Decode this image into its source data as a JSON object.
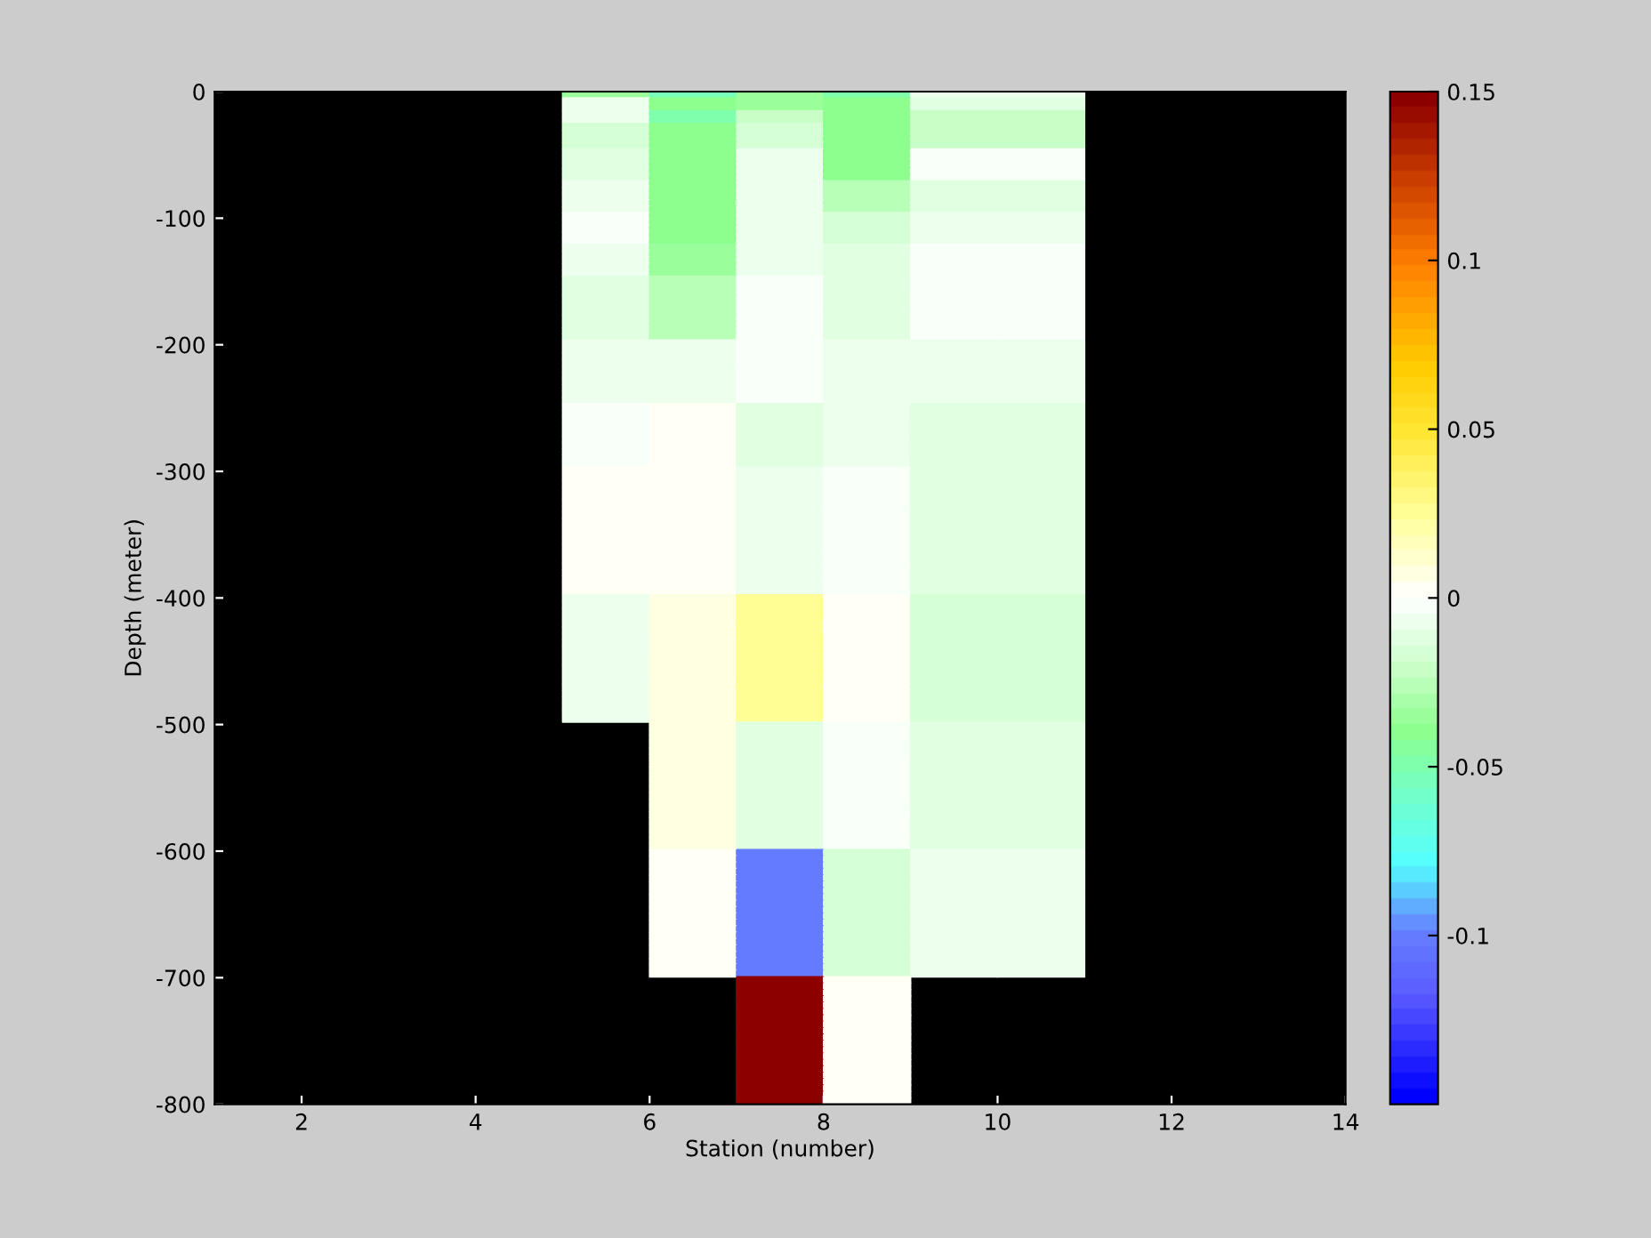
{
  "chart_data": {
    "type": "heatmap",
    "xlabel": "Station (number)",
    "ylabel": "Depth (meter)",
    "cells": [
      [
        null,
        null,
        null,
        null,
        -0.035,
        -0.055,
        -0.035,
        -0.05,
        -0.005,
        -0.005,
        null,
        null,
        null
      ],
      [
        null,
        null,
        null,
        null,
        -0.007,
        -0.04,
        -0.035,
        -0.04,
        -0.01,
        -0.01,
        null,
        null,
        null
      ],
      [
        null,
        null,
        null,
        null,
        -0.007,
        -0.04,
        -0.035,
        -0.04,
        -0.01,
        -0.01,
        null,
        null,
        null
      ],
      [
        null,
        null,
        null,
        null,
        -0.007,
        -0.05,
        -0.022,
        -0.04,
        -0.022,
        -0.022,
        null,
        null,
        null
      ],
      [
        null,
        null,
        null,
        null,
        -0.007,
        -0.05,
        -0.022,
        -0.04,
        -0.022,
        -0.022,
        null,
        null,
        null
      ],
      [
        null,
        null,
        null,
        null,
        -0.017,
        -0.04,
        -0.017,
        -0.04,
        -0.022,
        -0.022,
        null,
        null,
        null
      ],
      [
        null,
        null,
        null,
        null,
        -0.017,
        -0.04,
        -0.017,
        -0.04,
        -0.022,
        -0.022,
        null,
        null,
        null
      ],
      [
        null,
        null,
        null,
        null,
        -0.017,
        -0.04,
        -0.017,
        -0.04,
        -0.022,
        -0.022,
        null,
        null,
        null
      ],
      [
        null,
        null,
        null,
        null,
        -0.017,
        -0.04,
        -0.017,
        -0.04,
        -0.022,
        -0.022,
        null,
        null,
        null
      ],
      [
        null,
        null,
        null,
        null,
        -0.012,
        -0.04,
        -0.007,
        -0.04,
        -0.002,
        -0.002,
        null,
        null,
        null
      ],
      [
        null,
        null,
        null,
        null,
        -0.012,
        -0.04,
        -0.007,
        -0.04,
        -0.002,
        -0.002,
        null,
        null,
        null
      ],
      [
        null,
        null,
        null,
        null,
        -0.012,
        -0.04,
        -0.007,
        -0.04,
        -0.002,
        -0.002,
        null,
        null,
        null
      ],
      [
        null,
        null,
        null,
        null,
        -0.012,
        -0.04,
        -0.007,
        -0.04,
        -0.002,
        -0.002,
        null,
        null,
        null
      ],
      [
        null,
        null,
        null,
        null,
        -0.012,
        -0.04,
        -0.007,
        -0.04,
        -0.002,
        -0.002,
        null,
        null,
        null
      ],
      [
        null,
        null,
        null,
        null,
        -0.005,
        -0.04,
        -0.007,
        -0.028,
        -0.01,
        -0.01,
        null,
        null,
        null
      ],
      [
        null,
        null,
        null,
        null,
        -0.005,
        -0.04,
        -0.007,
        -0.028,
        -0.01,
        -0.01,
        null,
        null,
        null
      ],
      [
        null,
        null,
        null,
        null,
        -0.005,
        -0.04,
        -0.007,
        -0.028,
        -0.01,
        -0.01,
        null,
        null,
        null
      ],
      [
        null,
        null,
        null,
        null,
        -0.005,
        -0.04,
        -0.007,
        -0.028,
        -0.01,
        -0.01,
        null,
        null,
        null
      ],
      [
        null,
        null,
        null,
        null,
        -0.005,
        -0.04,
        -0.007,
        -0.028,
        -0.01,
        -0.01,
        null,
        null,
        null
      ],
      [
        null,
        null,
        null,
        null,
        -0.002,
        -0.04,
        -0.007,
        -0.017,
        -0.007,
        -0.007,
        null,
        null,
        null
      ],
      [
        null,
        null,
        null,
        null,
        -0.002,
        -0.04,
        -0.007,
        -0.017,
        -0.007,
        -0.007,
        null,
        null,
        null
      ],
      [
        null,
        null,
        null,
        null,
        -0.002,
        -0.04,
        -0.007,
        -0.017,
        -0.007,
        -0.007,
        null,
        null,
        null
      ],
      [
        null,
        null,
        null,
        null,
        -0.002,
        -0.04,
        -0.007,
        -0.017,
        -0.007,
        -0.007,
        null,
        null,
        null
      ],
      [
        null,
        null,
        null,
        null,
        -0.002,
        -0.04,
        -0.007,
        -0.017,
        -0.007,
        -0.007,
        null,
        null,
        null
      ],
      [
        null,
        null,
        null,
        null,
        -0.007,
        -0.034,
        -0.007,
        -0.012,
        -0.002,
        -0.002,
        null,
        null,
        null
      ],
      [
        null,
        null,
        null,
        null,
        -0.007,
        -0.034,
        -0.007,
        -0.012,
        -0.002,
        -0.002,
        null,
        null,
        null
      ],
      [
        null,
        null,
        null,
        null,
        -0.007,
        -0.034,
        -0.007,
        -0.012,
        -0.002,
        -0.002,
        null,
        null,
        null
      ],
      [
        null,
        null,
        null,
        null,
        -0.007,
        -0.034,
        -0.007,
        -0.012,
        -0.002,
        -0.002,
        null,
        null,
        null
      ],
      [
        null,
        null,
        null,
        null,
        -0.007,
        -0.034,
        -0.007,
        -0.012,
        -0.002,
        -0.002,
        null,
        null,
        null
      ],
      [
        null,
        null,
        null,
        null,
        -0.012,
        -0.028,
        -0.002,
        -0.012,
        -0.002,
        -0.002,
        null,
        null,
        null
      ],
      [
        null,
        null,
        null,
        null,
        -0.012,
        -0.028,
        -0.002,
        -0.012,
        -0.002,
        -0.002,
        null,
        null,
        null
      ],
      [
        null,
        null,
        null,
        null,
        -0.012,
        -0.028,
        -0.002,
        -0.012,
        -0.002,
        -0.002,
        null,
        null,
        null
      ],
      [
        null,
        null,
        null,
        null,
        -0.012,
        -0.028,
        -0.002,
        -0.012,
        -0.002,
        -0.002,
        null,
        null,
        null
      ],
      [
        null,
        null,
        null,
        null,
        -0.012,
        -0.028,
        -0.002,
        -0.012,
        -0.002,
        -0.002,
        null,
        null,
        null
      ],
      [
        null,
        null,
        null,
        null,
        -0.012,
        -0.028,
        -0.002,
        -0.012,
        -0.002,
        -0.002,
        null,
        null,
        null
      ],
      [
        null,
        null,
        null,
        null,
        -0.012,
        -0.028,
        -0.002,
        -0.012,
        -0.002,
        -0.002,
        null,
        null,
        null
      ],
      [
        null,
        null,
        null,
        null,
        -0.012,
        -0.028,
        -0.002,
        -0.012,
        -0.002,
        -0.002,
        null,
        null,
        null
      ],
      [
        null,
        null,
        null,
        null,
        -0.012,
        -0.028,
        -0.002,
        -0.012,
        -0.002,
        -0.002,
        null,
        null,
        null
      ],
      [
        null,
        null,
        null,
        null,
        -0.012,
        -0.028,
        -0.002,
        -0.012,
        -0.002,
        -0.002,
        null,
        null,
        null
      ],
      [
        null,
        null,
        null,
        null,
        -0.007,
        -0.007,
        -0.003,
        -0.007,
        -0.007,
        -0.007,
        null,
        null,
        null
      ],
      [
        null,
        null,
        null,
        null,
        -0.007,
        -0.007,
        -0.003,
        -0.007,
        -0.007,
        -0.007,
        null,
        null,
        null
      ],
      [
        null,
        null,
        null,
        null,
        -0.007,
        -0.007,
        -0.003,
        -0.007,
        -0.007,
        -0.007,
        null,
        null,
        null
      ],
      [
        null,
        null,
        null,
        null,
        -0.007,
        -0.007,
        -0.003,
        -0.007,
        -0.007,
        -0.007,
        null,
        null,
        null
      ],
      [
        null,
        null,
        null,
        null,
        -0.007,
        -0.007,
        -0.003,
        -0.007,
        -0.007,
        -0.007,
        null,
        null,
        null
      ],
      [
        null,
        null,
        null,
        null,
        -0.007,
        -0.007,
        -0.003,
        -0.007,
        -0.007,
        -0.007,
        null,
        null,
        null
      ],
      [
        null,
        null,
        null,
        null,
        -0.007,
        -0.007,
        -0.003,
        -0.007,
        -0.007,
        -0.007,
        null,
        null,
        null
      ],
      [
        null,
        null,
        null,
        null,
        -0.007,
        -0.007,
        -0.003,
        -0.007,
        -0.007,
        -0.007,
        null,
        null,
        null
      ],
      [
        null,
        null,
        null,
        null,
        -0.007,
        -0.007,
        -0.003,
        -0.007,
        -0.007,
        -0.007,
        null,
        null,
        null
      ],
      [
        null,
        null,
        null,
        null,
        -0.007,
        -0.007,
        -0.003,
        -0.007,
        -0.007,
        -0.007,
        null,
        null,
        null
      ],
      [
        null,
        null,
        null,
        null,
        -0.003,
        0.003,
        -0.012,
        -0.007,
        -0.012,
        -0.012,
        null,
        null,
        null
      ],
      [
        null,
        null,
        null,
        null,
        -0.003,
        0.003,
        -0.012,
        -0.007,
        -0.012,
        -0.012,
        null,
        null,
        null
      ],
      [
        null,
        null,
        null,
        null,
        -0.003,
        0.003,
        -0.012,
        -0.007,
        -0.012,
        -0.012,
        null,
        null,
        null
      ],
      [
        null,
        null,
        null,
        null,
        -0.003,
        0.003,
        -0.012,
        -0.007,
        -0.012,
        -0.012,
        null,
        null,
        null
      ],
      [
        null,
        null,
        null,
        null,
        -0.003,
        0.003,
        -0.012,
        -0.007,
        -0.012,
        -0.012,
        null,
        null,
        null
      ],
      [
        null,
        null,
        null,
        null,
        -0.003,
        0.003,
        -0.012,
        -0.007,
        -0.012,
        -0.012,
        null,
        null,
        null
      ],
      [
        null,
        null,
        null,
        null,
        -0.003,
        0.003,
        -0.012,
        -0.007,
        -0.012,
        -0.012,
        null,
        null,
        null
      ],
      [
        null,
        null,
        null,
        null,
        -0.003,
        0.003,
        -0.012,
        -0.007,
        -0.012,
        -0.012,
        null,
        null,
        null
      ],
      [
        null,
        null,
        null,
        null,
        -0.003,
        0.003,
        -0.012,
        -0.007,
        -0.012,
        -0.012,
        null,
        null,
        null
      ],
      [
        null,
        null,
        null,
        null,
        -0.003,
        0.003,
        -0.012,
        -0.007,
        -0.012,
        -0.012,
        null,
        null,
        null
      ],
      [
        null,
        null,
        null,
        null,
        0.003,
        0.003,
        -0.007,
        -0.003,
        -0.012,
        -0.012,
        null,
        null,
        null
      ],
      [
        null,
        null,
        null,
        null,
        0.003,
        0.003,
        -0.007,
        -0.003,
        -0.012,
        -0.012,
        null,
        null,
        null
      ],
      [
        null,
        null,
        null,
        null,
        0.003,
        0.003,
        -0.007,
        -0.003,
        -0.012,
        -0.012,
        null,
        null,
        null
      ],
      [
        null,
        null,
        null,
        null,
        0.003,
        0.003,
        -0.007,
        -0.003,
        -0.012,
        -0.012,
        null,
        null,
        null
      ],
      [
        null,
        null,
        null,
        null,
        0.003,
        0.003,
        -0.007,
        -0.003,
        -0.012,
        -0.012,
        null,
        null,
        null
      ],
      [
        null,
        null,
        null,
        null,
        0.003,
        0.003,
        -0.007,
        -0.003,
        -0.012,
        -0.012,
        null,
        null,
        null
      ],
      [
        null,
        null,
        null,
        null,
        0.003,
        0.003,
        -0.007,
        -0.003,
        -0.012,
        -0.012,
        null,
        null,
        null
      ],
      [
        null,
        null,
        null,
        null,
        0.003,
        0.003,
        -0.007,
        -0.003,
        -0.012,
        -0.012,
        null,
        null,
        null
      ],
      [
        null,
        null,
        null,
        null,
        0.003,
        0.003,
        -0.007,
        -0.003,
        -0.012,
        -0.012,
        null,
        null,
        null
      ],
      [
        null,
        null,
        null,
        null,
        0.003,
        0.003,
        -0.007,
        -0.003,
        -0.012,
        -0.012,
        null,
        null,
        null
      ],
      [
        null,
        null,
        null,
        null,
        0.003,
        0.003,
        -0.007,
        -0.003,
        -0.012,
        -0.012,
        null,
        null,
        null
      ],
      [
        null,
        null,
        null,
        null,
        0.003,
        0.003,
        -0.007,
        -0.003,
        -0.012,
        -0.012,
        null,
        null,
        null
      ],
      [
        null,
        null,
        null,
        null,
        0.003,
        0.003,
        -0.007,
        -0.003,
        -0.012,
        -0.012,
        null,
        null,
        null
      ],
      [
        null,
        null,
        null,
        null,
        0.003,
        0.003,
        -0.007,
        -0.003,
        -0.012,
        -0.012,
        null,
        null,
        null
      ],
      [
        null,
        null,
        null,
        null,
        0.003,
        0.003,
        -0.007,
        -0.003,
        -0.012,
        -0.012,
        null,
        null,
        null
      ],
      [
        null,
        null,
        null,
        null,
        0.003,
        0.003,
        -0.007,
        -0.003,
        -0.012,
        -0.012,
        null,
        null,
        null
      ],
      [
        null,
        null,
        null,
        null,
        0.003,
        0.003,
        -0.007,
        -0.003,
        -0.012,
        -0.012,
        null,
        null,
        null
      ],
      [
        null,
        null,
        null,
        null,
        0.003,
        0.003,
        -0.007,
        -0.003,
        -0.012,
        -0.012,
        null,
        null,
        null
      ],
      [
        null,
        null,
        null,
        null,
        0.003,
        0.003,
        -0.007,
        -0.003,
        -0.012,
        -0.012,
        null,
        null,
        null
      ],
      [
        null,
        null,
        null,
        null,
        0.003,
        0.003,
        -0.007,
        -0.003,
        -0.012,
        -0.012,
        null,
        null,
        null
      ],
      [
        null,
        null,
        null,
        null,
        -0.007,
        0.008,
        0.025,
        0.003,
        -0.017,
        -0.017,
        null,
        null,
        null
      ],
      [
        null,
        null,
        null,
        null,
        -0.007,
        0.008,
        0.025,
        0.003,
        -0.017,
        -0.017,
        null,
        null,
        null
      ],
      [
        null,
        null,
        null,
        null,
        -0.007,
        0.008,
        0.025,
        0.003,
        -0.017,
        -0.017,
        null,
        null,
        null
      ],
      [
        null,
        null,
        null,
        null,
        -0.007,
        0.008,
        0.025,
        0.003,
        -0.017,
        -0.017,
        null,
        null,
        null
      ],
      [
        null,
        null,
        null,
        null,
        -0.007,
        0.008,
        0.025,
        0.003,
        -0.017,
        -0.017,
        null,
        null,
        null
      ],
      [
        null,
        null,
        null,
        null,
        -0.007,
        0.008,
        0.025,
        0.003,
        -0.017,
        -0.017,
        null,
        null,
        null
      ],
      [
        null,
        null,
        null,
        null,
        -0.007,
        0.008,
        0.025,
        0.003,
        -0.017,
        -0.017,
        null,
        null,
        null
      ],
      [
        null,
        null,
        null,
        null,
        -0.007,
        0.008,
        0.025,
        0.003,
        -0.017,
        -0.017,
        null,
        null,
        null
      ],
      [
        null,
        null,
        null,
        null,
        -0.007,
        0.008,
        0.025,
        0.003,
        -0.017,
        -0.017,
        null,
        null,
        null
      ],
      [
        null,
        null,
        null,
        null,
        -0.007,
        0.008,
        0.025,
        0.003,
        -0.017,
        -0.017,
        null,
        null,
        null
      ],
      [
        null,
        null,
        null,
        null,
        -0.007,
        0.008,
        0.025,
        0.003,
        -0.017,
        -0.017,
        null,
        null,
        null
      ],
      [
        null,
        null,
        null,
        null,
        -0.007,
        0.008,
        0.025,
        0.003,
        -0.017,
        -0.017,
        null,
        null,
        null
      ],
      [
        null,
        null,
        null,
        null,
        -0.007,
        0.008,
        0.025,
        0.003,
        -0.017,
        -0.017,
        null,
        null,
        null
      ],
      [
        null,
        null,
        null,
        null,
        -0.007,
        0.008,
        0.025,
        0.003,
        -0.017,
        -0.017,
        null,
        null,
        null
      ],
      [
        null,
        null,
        null,
        null,
        -0.007,
        0.008,
        0.025,
        0.003,
        -0.017,
        -0.017,
        null,
        null,
        null
      ],
      [
        null,
        null,
        null,
        null,
        -0.007,
        0.008,
        0.025,
        0.003,
        -0.017,
        -0.017,
        null,
        null,
        null
      ],
      [
        null,
        null,
        null,
        null,
        -0.007,
        0.008,
        0.025,
        0.003,
        -0.017,
        -0.017,
        null,
        null,
        null
      ],
      [
        null,
        null,
        null,
        null,
        -0.007,
        0.008,
        0.025,
        0.003,
        -0.017,
        -0.017,
        null,
        null,
        null
      ],
      [
        null,
        null,
        null,
        null,
        -0.007,
        0.008,
        0.025,
        0.003,
        -0.017,
        -0.017,
        null,
        null,
        null
      ],
      [
        null,
        null,
        null,
        null,
        -0.007,
        0.008,
        0.025,
        0.003,
        -0.017,
        -0.017,
        null,
        null,
        null
      ],
      [
        null,
        null,
        null,
        null,
        null,
        0.008,
        -0.012,
        -0.003,
        -0.012,
        -0.012,
        null,
        null,
        null
      ],
      [
        null,
        null,
        null,
        null,
        null,
        0.008,
        -0.012,
        -0.003,
        -0.012,
        -0.012,
        null,
        null,
        null
      ],
      [
        null,
        null,
        null,
        null,
        null,
        0.008,
        -0.012,
        -0.003,
        -0.012,
        -0.012,
        null,
        null,
        null
      ],
      [
        null,
        null,
        null,
        null,
        null,
        0.008,
        -0.012,
        -0.003,
        -0.012,
        -0.012,
        null,
        null,
        null
      ],
      [
        null,
        null,
        null,
        null,
        null,
        0.008,
        -0.012,
        -0.003,
        -0.012,
        -0.012,
        null,
        null,
        null
      ],
      [
        null,
        null,
        null,
        null,
        null,
        0.008,
        -0.012,
        -0.003,
        -0.012,
        -0.012,
        null,
        null,
        null
      ],
      [
        null,
        null,
        null,
        null,
        null,
        0.008,
        -0.012,
        -0.003,
        -0.012,
        -0.012,
        null,
        null,
        null
      ],
      [
        null,
        null,
        null,
        null,
        null,
        0.008,
        -0.012,
        -0.003,
        -0.012,
        -0.012,
        null,
        null,
        null
      ],
      [
        null,
        null,
        null,
        null,
        null,
        0.008,
        -0.012,
        -0.003,
        -0.012,
        -0.012,
        null,
        null,
        null
      ],
      [
        null,
        null,
        null,
        null,
        null,
        0.008,
        -0.012,
        -0.003,
        -0.012,
        -0.012,
        null,
        null,
        null
      ],
      [
        null,
        null,
        null,
        null,
        null,
        0.008,
        -0.012,
        -0.003,
        -0.012,
        -0.012,
        null,
        null,
        null
      ],
      [
        null,
        null,
        null,
        null,
        null,
        0.008,
        -0.012,
        -0.003,
        -0.012,
        -0.012,
        null,
        null,
        null
      ],
      [
        null,
        null,
        null,
        null,
        null,
        0.008,
        -0.012,
        -0.003,
        -0.012,
        -0.012,
        null,
        null,
        null
      ],
      [
        null,
        null,
        null,
        null,
        null,
        0.008,
        -0.012,
        -0.003,
        -0.012,
        -0.012,
        null,
        null,
        null
      ],
      [
        null,
        null,
        null,
        null,
        null,
        0.008,
        -0.012,
        -0.003,
        -0.012,
        -0.012,
        null,
        null,
        null
      ],
      [
        null,
        null,
        null,
        null,
        null,
        0.008,
        -0.012,
        -0.003,
        -0.012,
        -0.012,
        null,
        null,
        null
      ],
      [
        null,
        null,
        null,
        null,
        null,
        0.008,
        -0.012,
        -0.003,
        -0.012,
        -0.012,
        null,
        null,
        null
      ],
      [
        null,
        null,
        null,
        null,
        null,
        0.008,
        -0.012,
        -0.003,
        -0.012,
        -0.012,
        null,
        null,
        null
      ],
      [
        null,
        null,
        null,
        null,
        null,
        0.008,
        -0.012,
        -0.003,
        -0.012,
        -0.012,
        null,
        null,
        null
      ],
      [
        null,
        null,
        null,
        null,
        null,
        0.008,
        -0.012,
        -0.003,
        -0.012,
        -0.012,
        null,
        null,
        null
      ],
      [
        null,
        null,
        null,
        null,
        null,
        0.003,
        -0.1,
        -0.017,
        -0.007,
        -0.007,
        null,
        null,
        null
      ],
      [
        null,
        null,
        null,
        null,
        null,
        0.003,
        -0.1,
        -0.017,
        -0.007,
        -0.007,
        null,
        null,
        null
      ],
      [
        null,
        null,
        null,
        null,
        null,
        0.003,
        -0.1,
        -0.017,
        -0.007,
        -0.007,
        null,
        null,
        null
      ],
      [
        null,
        null,
        null,
        null,
        null,
        0.003,
        -0.1,
        -0.017,
        -0.007,
        -0.007,
        null,
        null,
        null
      ],
      [
        null,
        null,
        null,
        null,
        null,
        0.003,
        -0.1,
        -0.017,
        -0.007,
        -0.007,
        null,
        null,
        null
      ],
      [
        null,
        null,
        null,
        null,
        null,
        0.003,
        -0.1,
        -0.017,
        -0.007,
        -0.007,
        null,
        null,
        null
      ],
      [
        null,
        null,
        null,
        null,
        null,
        0.003,
        -0.1,
        -0.017,
        -0.007,
        -0.007,
        null,
        null,
        null
      ],
      [
        null,
        null,
        null,
        null,
        null,
        0.003,
        -0.1,
        -0.017,
        -0.007,
        -0.007,
        null,
        null,
        null
      ],
      [
        null,
        null,
        null,
        null,
        null,
        0.003,
        -0.1,
        -0.017,
        -0.007,
        -0.007,
        null,
        null,
        null
      ],
      [
        null,
        null,
        null,
        null,
        null,
        0.003,
        -0.1,
        -0.017,
        -0.007,
        -0.007,
        null,
        null,
        null
      ],
      [
        null,
        null,
        null,
        null,
        null,
        0.003,
        -0.1,
        -0.017,
        -0.007,
        -0.007,
        null,
        null,
        null
      ],
      [
        null,
        null,
        null,
        null,
        null,
        0.003,
        -0.1,
        -0.017,
        -0.007,
        -0.007,
        null,
        null,
        null
      ],
      [
        null,
        null,
        null,
        null,
        null,
        0.003,
        -0.1,
        -0.017,
        -0.007,
        -0.007,
        null,
        null,
        null
      ],
      [
        null,
        null,
        null,
        null,
        null,
        0.003,
        -0.1,
        -0.017,
        -0.007,
        -0.007,
        null,
        null,
        null
      ],
      [
        null,
        null,
        null,
        null,
        null,
        0.003,
        -0.1,
        -0.017,
        -0.007,
        -0.007,
        null,
        null,
        null
      ],
      [
        null,
        null,
        null,
        null,
        null,
        0.003,
        -0.1,
        -0.017,
        -0.007,
        -0.007,
        null,
        null,
        null
      ],
      [
        null,
        null,
        null,
        null,
        null,
        0.003,
        -0.1,
        -0.017,
        -0.007,
        -0.007,
        null,
        null,
        null
      ],
      [
        null,
        null,
        null,
        null,
        null,
        0.003,
        -0.1,
        -0.017,
        -0.007,
        -0.007,
        null,
        null,
        null
      ],
      [
        null,
        null,
        null,
        null,
        null,
        0.003,
        -0.1,
        -0.017,
        -0.007,
        -0.007,
        null,
        null,
        null
      ],
      [
        null,
        null,
        null,
        null,
        null,
        0.003,
        -0.1,
        -0.017,
        -0.007,
        -0.007,
        null,
        null,
        null
      ],
      [
        null,
        null,
        null,
        null,
        null,
        null,
        0.15,
        0.003,
        null,
        null,
        null,
        null,
        null
      ],
      [
        null,
        null,
        null,
        null,
        null,
        null,
        0.15,
        0.003,
        null,
        null,
        null,
        null,
        null
      ],
      [
        null,
        null,
        null,
        null,
        null,
        null,
        0.15,
        0.003,
        null,
        null,
        null,
        null,
        null
      ],
      [
        null,
        null,
        null,
        null,
        null,
        null,
        0.15,
        0.003,
        null,
        null,
        null,
        null,
        null
      ],
      [
        null,
        null,
        null,
        null,
        null,
        null,
        0.15,
        0.003,
        null,
        null,
        null,
        null,
        null
      ],
      [
        null,
        null,
        null,
        null,
        null,
        null,
        0.15,
        0.003,
        null,
        null,
        null,
        null,
        null
      ],
      [
        null,
        null,
        null,
        null,
        null,
        null,
        0.15,
        0.003,
        null,
        null,
        null,
        null,
        null
      ],
      [
        null,
        null,
        null,
        null,
        null,
        null,
        0.15,
        0.003,
        null,
        null,
        null,
        null,
        null
      ],
      [
        null,
        null,
        null,
        null,
        null,
        null,
        0.15,
        0.003,
        null,
        null,
        null,
        null,
        null
      ],
      [
        null,
        null,
        null,
        null,
        null,
        null,
        0.15,
        0.003,
        null,
        null,
        null,
        null,
        null
      ],
      [
        null,
        null,
        null,
        null,
        null,
        null,
        0.15,
        0.003,
        null,
        null,
        null,
        null,
        null
      ],
      [
        null,
        null,
        null,
        null,
        null,
        null,
        0.15,
        0.003,
        null,
        null,
        null,
        null,
        null
      ],
      [
        null,
        null,
        null,
        null,
        null,
        null,
        0.15,
        0.003,
        null,
        null,
        null,
        null,
        null
      ],
      [
        null,
        null,
        null,
        null,
        null,
        null,
        0.15,
        0.003,
        null,
        null,
        null,
        null,
        null
      ],
      [
        null,
        null,
        null,
        null,
        null,
        null,
        0.15,
        0.003,
        null,
        null,
        null,
        null,
        null
      ],
      [
        null,
        null,
        null,
        null,
        null,
        null,
        0.15,
        0.003,
        null,
        null,
        null,
        null,
        null
      ],
      [
        null,
        null,
        null,
        null,
        null,
        null,
        0.15,
        0.003,
        null,
        null,
        null,
        null,
        null
      ],
      [
        null,
        null,
        null,
        null,
        null,
        null,
        0.15,
        0.003,
        null,
        null,
        null,
        null,
        null
      ],
      [
        null,
        null,
        null,
        null,
        null,
        null,
        0.15,
        0.003,
        null,
        null,
        null,
        null,
        null
      ],
      [
        null,
        null,
        null,
        null,
        null,
        null,
        0.15,
        0.003,
        null,
        null,
        null,
        null,
        null
      ]
    ],
    "xlim": [
      1,
      14
    ],
    "xticks": [
      2,
      4,
      6,
      8,
      10,
      12,
      14
    ],
    "ylim": [
      -800,
      0
    ],
    "yticks": [
      -800,
      -700,
      -600,
      -500,
      -400,
      -300,
      -200,
      -100,
      0
    ],
    "clim": [
      -0.15,
      0.15
    ],
    "cticks": [
      -0.1,
      -0.05,
      0,
      0.05,
      0.1,
      0.15
    ]
  }
}
